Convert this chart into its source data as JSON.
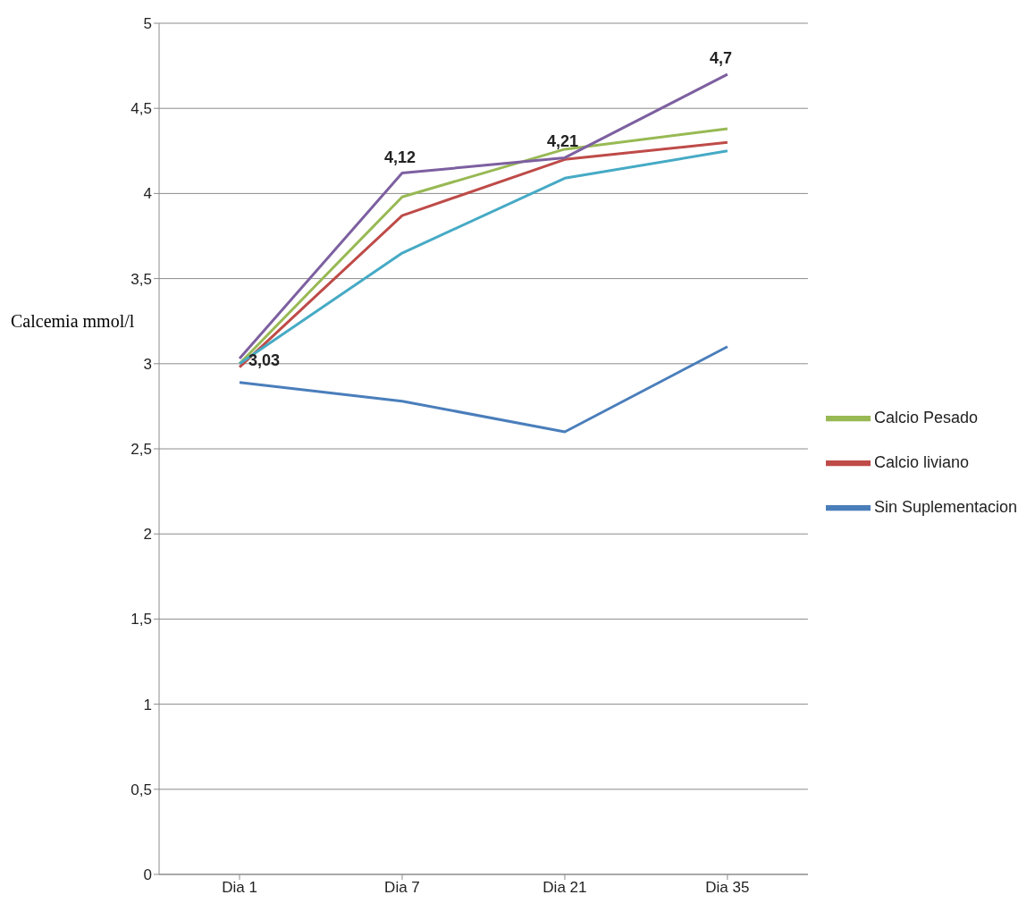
{
  "chart_data": {
    "type": "line",
    "ylabel": "Calcemia mmol/l",
    "categories": [
      "Dia 1",
      "Dia 7",
      "Dia 21",
      "Dia 35"
    ],
    "series": [
      {
        "name": "Sin Suplementacion",
        "color": "#4a7ebb",
        "values": [
          2.89,
          2.78,
          2.6,
          3.1
        ]
      },
      {
        "name": "Calcio liviano",
        "color": "#be4b48",
        "values": [
          2.98,
          3.87,
          4.2,
          4.3
        ]
      },
      {
        "name": "Calcio Pesado",
        "color": "#98b954",
        "values": [
          3.0,
          3.98,
          4.26,
          4.38
        ]
      },
      {
        "color": "#7d60a0",
        "values": [
          3.03,
          4.12,
          4.21,
          4.7
        ],
        "value_labels": [
          "3,03",
          "4,12",
          "4,21",
          "4,7"
        ]
      },
      {
        "color": "#46aac5",
        "values": [
          3.0,
          3.65,
          4.09,
          4.25
        ]
      }
    ],
    "ylim": [
      0,
      5
    ],
    "yticks": [
      0,
      {
        "value": 0.5,
        "label": "0,5"
      },
      1,
      {
        "value": 1.5,
        "label": "1,5"
      },
      2,
      {
        "value": 2.5,
        "label": "2,5"
      },
      3,
      {
        "value": 3.5,
        "label": "3,5"
      },
      4,
      {
        "value": 4.5,
        "label": "4,5"
      },
      5
    ],
    "grid": "y",
    "legend": "right",
    "marker": "none",
    "line_style": "solid"
  }
}
